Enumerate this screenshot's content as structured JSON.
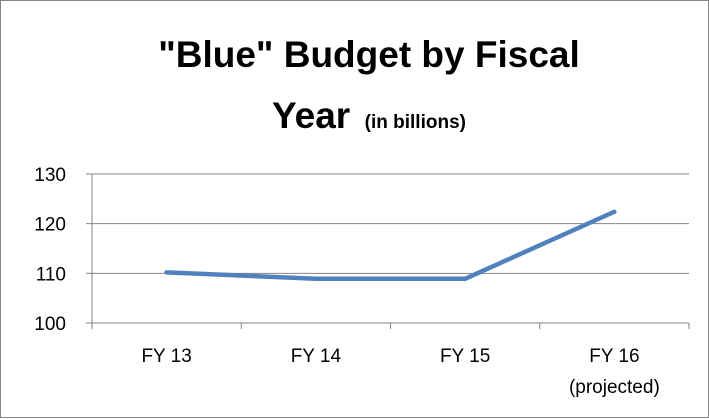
{
  "chart_data": {
    "type": "line",
    "title_line1": "\"Blue\" Budget by Fiscal",
    "title_line2_main": "Year",
    "title_line2_sub": "(in billions)",
    "categories": [
      {
        "line1": "FY 13",
        "line2": ""
      },
      {
        "line1": "FY 14",
        "line2": ""
      },
      {
        "line1": "FY 15",
        "line2": ""
      },
      {
        "line1": "FY 16",
        "line2": "(projected)"
      }
    ],
    "series": [
      {
        "values": [
          110.2,
          108.9,
          108.9,
          122.4
        ],
        "color": "#4f81bd"
      }
    ],
    "ylim": [
      100,
      130
    ],
    "yticks": [
      "100",
      "110",
      "120",
      "130"
    ],
    "grid": true,
    "legend": "none"
  }
}
